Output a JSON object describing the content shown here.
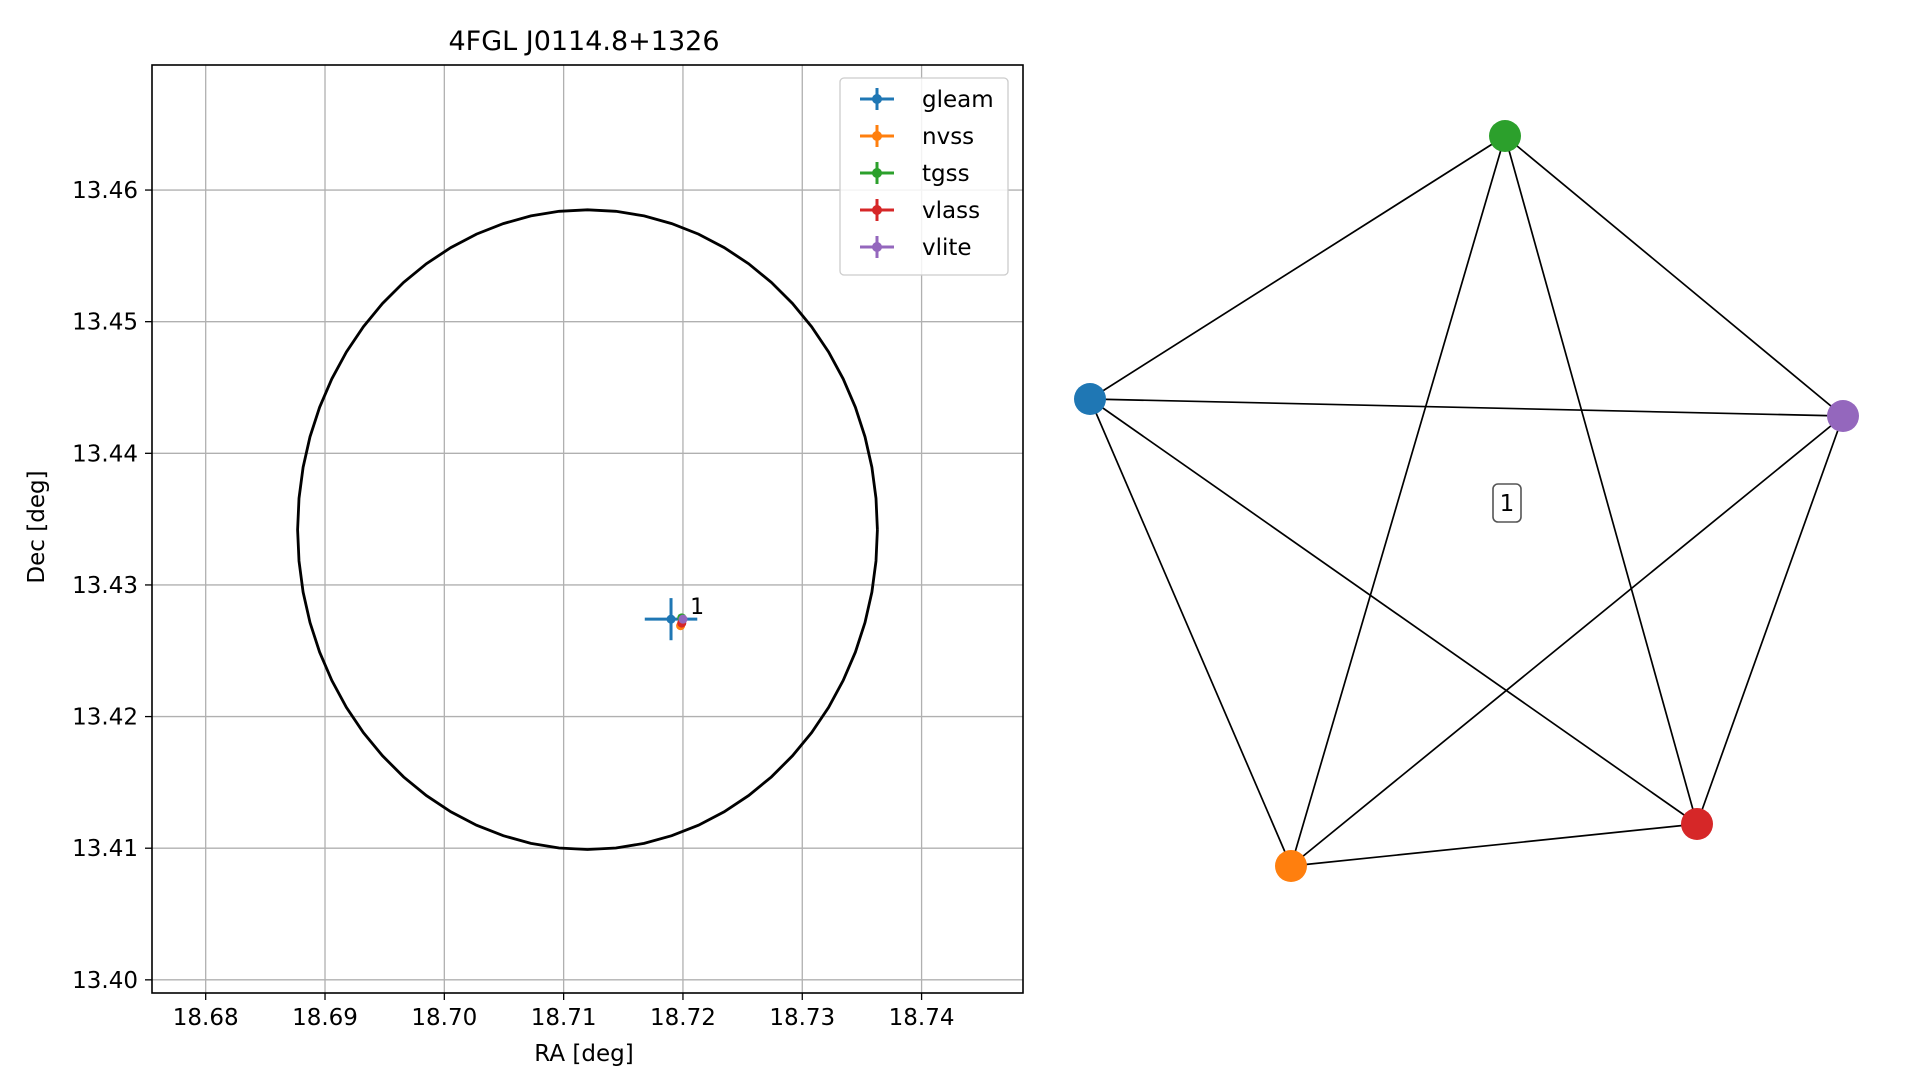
{
  "chart_data": [
    {
      "type": "scatter",
      "title": "4FGL J0114.8+1326",
      "xlabel": "RA [deg]",
      "ylabel": "Dec [deg]",
      "xlim": [
        18.6755,
        18.7485
      ],
      "ylim": [
        13.399,
        13.4695
      ],
      "xticks": [
        18.68,
        18.69,
        18.7,
        18.71,
        18.72,
        18.73,
        18.74
      ],
      "xtick_labels": [
        "18.68",
        "18.69",
        "18.70",
        "18.71",
        "18.72",
        "18.73",
        "18.74"
      ],
      "yticks": [
        13.4,
        13.41,
        13.42,
        13.43,
        13.44,
        13.45,
        13.46
      ],
      "ytick_labels": [
        "13.40",
        "13.41",
        "13.42",
        "13.43",
        "13.44",
        "13.45",
        "13.46"
      ],
      "grid": true,
      "legend_position": "top-right",
      "circle": {
        "center": [
          18.712,
          13.4342
        ],
        "radius": 0.0243,
        "color": "#000000"
      },
      "series": [
        {
          "name": "gleam",
          "color": "#1f77b4",
          "x": 18.719,
          "y": 13.4274,
          "xerr": 0.0022,
          "yerr": 0.0016
        },
        {
          "name": "nvss",
          "color": "#ff7f0e",
          "x": 18.7198,
          "y": 13.4269,
          "xerr": 0.0002,
          "yerr": 0.0002
        },
        {
          "name": "tgss",
          "color": "#2ca02c",
          "x": 18.7199,
          "y": 13.4275,
          "xerr": 0.0001,
          "yerr": 0.0003
        },
        {
          "name": "vlass",
          "color": "#d62728",
          "x": 18.7199,
          "y": 13.4271,
          "xerr": 0.0001,
          "yerr": 0.0001
        },
        {
          "name": "vlite",
          "color": "#9467bd",
          "x": 18.72,
          "y": 13.4274,
          "xerr": 0.0001,
          "yerr": 0.0001
        }
      ],
      "annotations": [
        {
          "text": "1",
          "x": 18.7206,
          "y": 13.4278
        }
      ]
    },
    {
      "type": "network",
      "nodes": [
        {
          "name": "gleam",
          "color": "#1f77b4"
        },
        {
          "name": "nvss",
          "color": "#ff7f0e"
        },
        {
          "name": "tgss",
          "color": "#2ca02c"
        },
        {
          "name": "vlass",
          "color": "#d62728"
        },
        {
          "name": "vlite",
          "color": "#9467bd"
        }
      ],
      "edges": [
        [
          "gleam",
          "nvss"
        ],
        [
          "gleam",
          "tgss"
        ],
        [
          "gleam",
          "vlass"
        ],
        [
          "gleam",
          "vlite"
        ],
        [
          "nvss",
          "tgss"
        ],
        [
          "nvss",
          "vlass"
        ],
        [
          "nvss",
          "vlite"
        ],
        [
          "tgss",
          "vlass"
        ],
        [
          "tgss",
          "vlite"
        ],
        [
          "vlass",
          "vlite"
        ]
      ],
      "cluster_label": "1"
    }
  ]
}
